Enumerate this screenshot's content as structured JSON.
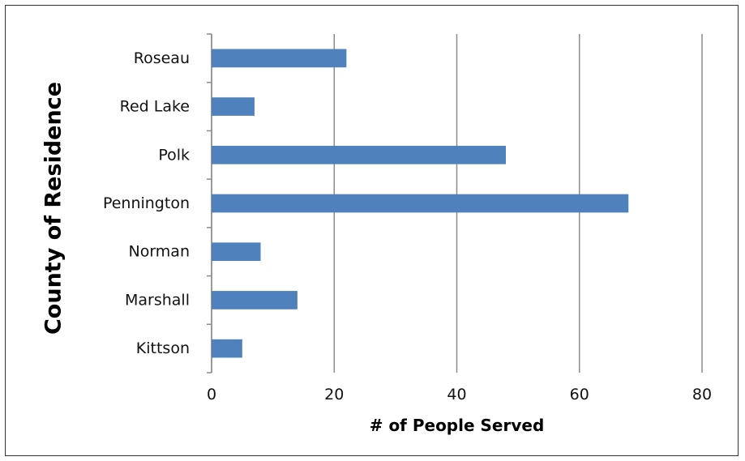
{
  "chart_data": {
    "type": "bar",
    "orientation": "horizontal",
    "categories": [
      "Kittson",
      "Marshall",
      "Norman",
      "Pennington",
      "Polk",
      "Red Lake",
      "Roseau"
    ],
    "values": [
      5,
      14,
      8,
      68,
      48,
      7,
      22
    ],
    "xlabel": "# of People Served",
    "ylabel": "County of Residence",
    "xlim": [
      0,
      80
    ],
    "xticks": [
      0,
      20,
      40,
      60,
      80
    ],
    "xtick_labels": [
      "0",
      "20",
      "40",
      "60",
      "80"
    ],
    "grid": "vertical-major",
    "legend": "none",
    "bar_color": "#4f81bd",
    "gridline_color": "#8c8c8c"
  }
}
